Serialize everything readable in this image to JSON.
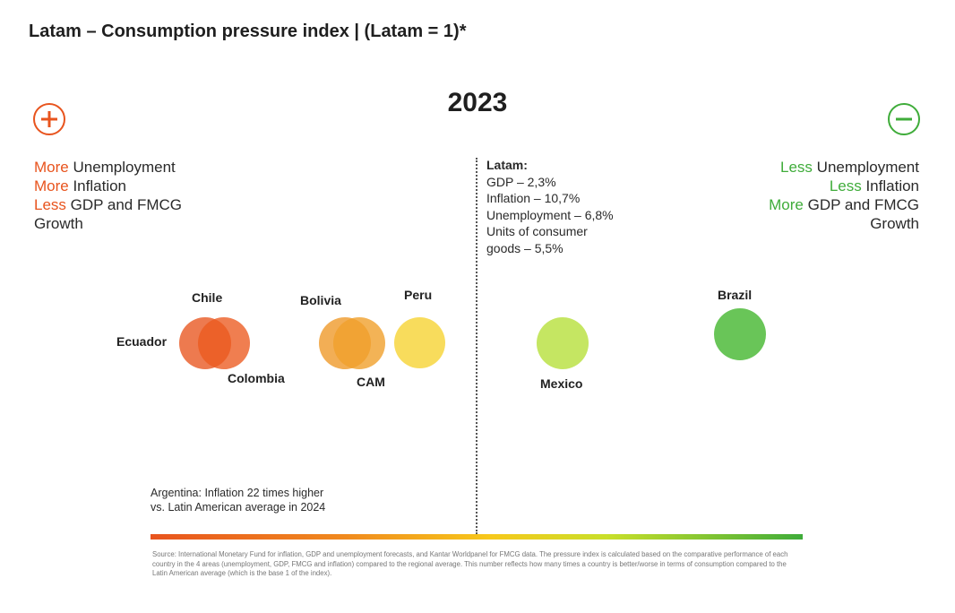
{
  "title": "Latam – Consumption pressure index | (Latam = 1)*",
  "year": "2023",
  "left_legend": {
    "lines": [
      {
        "keyword": "More",
        "text": " Unemployment"
      },
      {
        "keyword": "More",
        "text": " Inflation"
      },
      {
        "keyword": "Less",
        "text": " GDP and FMCG"
      }
    ],
    "tail": "Growth",
    "keyword_color": "#e8541e"
  },
  "right_legend": {
    "lines": [
      {
        "keyword": "Less",
        "text": " Unemployment"
      },
      {
        "keyword": "Less",
        "text": " Inflation"
      },
      {
        "keyword": "More",
        "text": " GDP and FMCG"
      }
    ],
    "tail": "Growth",
    "keyword_color": "#3fac3a"
  },
  "latam": {
    "heading": "Latam:",
    "gdp": "GDP – 2,3%",
    "inflation": "Inflation – 10,7%",
    "unemployment": "Unemployment – 6,8%",
    "consumer_line1": "Units of consumer",
    "consumer_line2": "goods – 5,5%"
  },
  "countries": {
    "ecuador": {
      "label": "Ecuador",
      "color": "#e8541e"
    },
    "chile": {
      "label": "Chile",
      "color": "#e8541e"
    },
    "colombia": {
      "label": "Colombia",
      "color": "#ec5a1f"
    },
    "bolivia": {
      "label": "Bolivia",
      "color": "#ef9a2a"
    },
    "cam": {
      "label": "CAM",
      "color": "#f0a02c"
    },
    "peru": {
      "label": "Peru",
      "color": "#f7d84a"
    },
    "mexico": {
      "label": "Mexico",
      "color": "#c2e55a"
    },
    "brazil": {
      "label": "Brazil",
      "color": "#5cc04a"
    }
  },
  "argentina_note": "Argentina: Inflation 22 times higher vs. Latin American average in 2024",
  "source": "Source: International Monetary Fund for inflation, GDP and unemployment forecasts, and Kantar Worldpanel for FMCG data. The pressure index is calculated based on the comparative performance of each country in the 4 areas (unemployment, GDP, FMCG and inflation) compared to the regional average. This number reflects how many times a country is better/worse in terms of consumption compared to the Latin American average (which is the base 1 of the index).",
  "icons": {
    "left": "plus-icon",
    "right": "minus-icon"
  }
}
